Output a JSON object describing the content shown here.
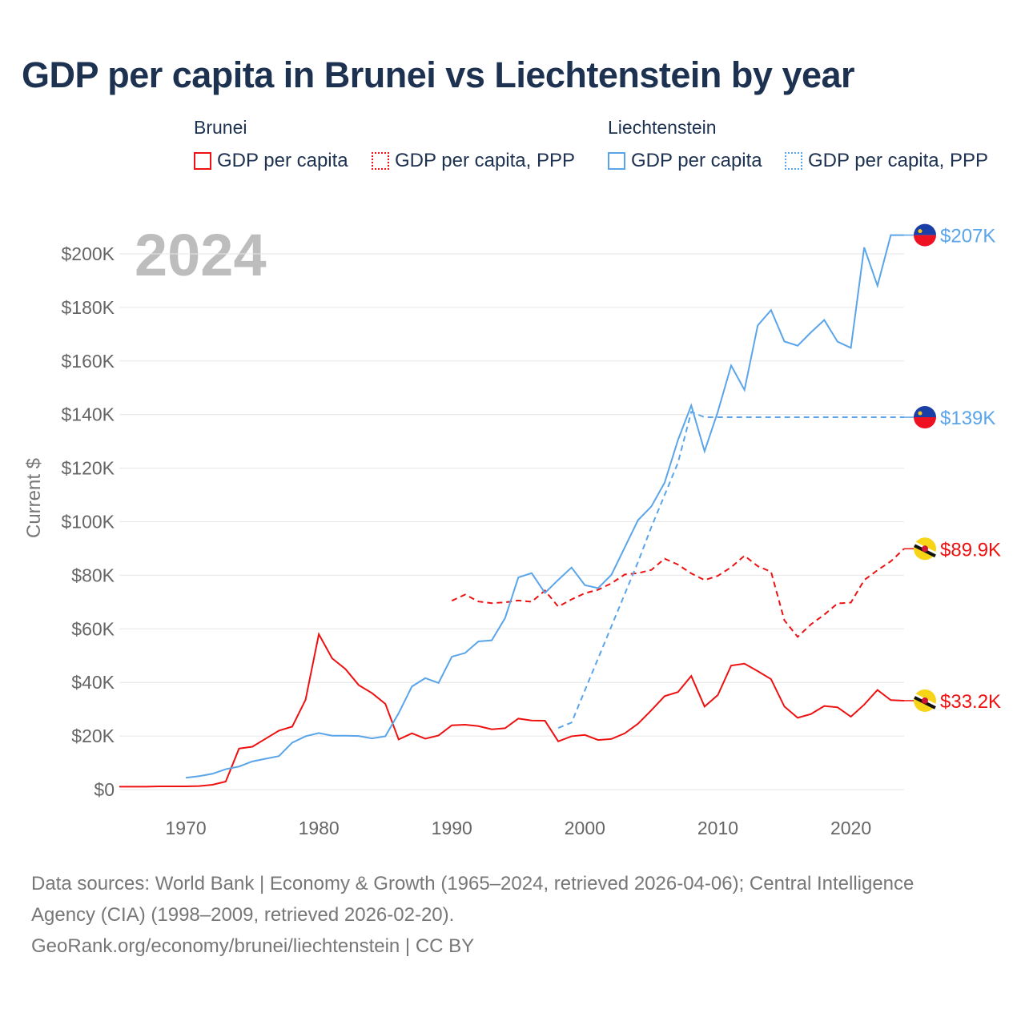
{
  "title": "GDP per capita in Brunei vs Liechtenstein by year",
  "legend": {
    "groups": [
      {
        "name": "Brunei",
        "items": [
          "GDP per capita",
          "GDP per capita, PPP"
        ]
      },
      {
        "name": "Liechtenstein",
        "items": [
          "GDP per capita",
          "GDP per capita, PPP"
        ]
      }
    ]
  },
  "year_overlay": "2024",
  "footer": {
    "line1": "Data sources: World Bank | Economy & Growth (1965–2024, retrieved 2026-04-06); Central Intelligence",
    "line2": "Agency (CIA) (1998–2009, retrieved 2026-02-20).",
    "line3": "GeoRank.org/economy/brunei/liechtenstein | CC BY"
  },
  "chart_data": {
    "type": "line",
    "title": "GDP per capita in Brunei vs Liechtenstein by year",
    "xlabel": "",
    "ylabel": "Current $",
    "xlim": [
      1965,
      2024
    ],
    "ylim": [
      0,
      200000
    ],
    "xticks": [
      1970,
      1980,
      1990,
      2000,
      2010,
      2020
    ],
    "yticks": [
      0,
      20000,
      40000,
      60000,
      80000,
      100000,
      120000,
      140000,
      160000,
      180000,
      200000
    ],
    "ytick_labels": [
      "$0",
      "$20K",
      "$40K",
      "$60K",
      "$80K",
      "$100K",
      "$120K",
      "$140K",
      "$160K",
      "$180K",
      "$200K"
    ],
    "colors": {
      "brunei": "#ee1111",
      "liechtenstein": "#5aa5ea"
    },
    "series": [
      {
        "name": "Brunei GDP per capita",
        "country": "brunei",
        "dashed": false,
        "end_label": "$33.2K",
        "x_start": 1965,
        "values": [
          1.1,
          1.1,
          1.1,
          1.2,
          1.2,
          1.2,
          1.3,
          1.8,
          3,
          15.3,
          16,
          19,
          22,
          23.5,
          33.5,
          58,
          49,
          45,
          39,
          36,
          32,
          18.7,
          21,
          19,
          20.2,
          24,
          24.2,
          23.7,
          22.5,
          22.9,
          26.5,
          25.8,
          25.7,
          18,
          19.9,
          20.4,
          18.5,
          18.9,
          21,
          24.6,
          29.6,
          34.9,
          36.4,
          42.4,
          31,
          35.3,
          46.3,
          47,
          44.2,
          41.2,
          31,
          26.8,
          28.2,
          31.2,
          30.7,
          27.2,
          31.7,
          37.2,
          33.4,
          33.2
        ]
      },
      {
        "name": "Brunei GDP per capita, PPP",
        "country": "brunei",
        "dashed": true,
        "end_label": "$89.9K",
        "x_start": 1990,
        "values": [
          70.5,
          72.8,
          70.2,
          69.6,
          69.9,
          70.6,
          70.1,
          74.3,
          68.3,
          71,
          73.3,
          74.6,
          77,
          80.3,
          80.8,
          82,
          86.2,
          84,
          80.7,
          78.2,
          79.8,
          83,
          87.3,
          83.4,
          81.3,
          63.2,
          57,
          61.7,
          65.3,
          69.5,
          69.8,
          78.2,
          81.9,
          85.2,
          89.9
        ]
      },
      {
        "name": "Liechtenstein GDP per capita",
        "country": "liechtenstein",
        "dashed": false,
        "end_label": "$207K",
        "x_start": 1970,
        "values": [
          4.4,
          5,
          5.9,
          7.6,
          8.6,
          10.5,
          11.5,
          12.5,
          17.5,
          19.9,
          21.1,
          20.1,
          20.1,
          20,
          19.1,
          19.9,
          28.5,
          38.5,
          41.6,
          39.8,
          49.6,
          51,
          55.3,
          55.7,
          64,
          79.2,
          80.8,
          73.4,
          78.3,
          82.9,
          76.3,
          75.2,
          80.2,
          90.4,
          100.6,
          105.7,
          114.6,
          130.5,
          143.4,
          126.3,
          141.1,
          158.3,
          149.2,
          173.3,
          179,
          167.3,
          165.7,
          170.7,
          175.3,
          167.2,
          164.9,
          202.4,
          188.1,
          207,
          207
        ]
      },
      {
        "name": "Liechtenstein GDP per capita, PPP",
        "country": "liechtenstein",
        "dashed": true,
        "end_label": "$139K",
        "x_start": 1998,
        "values": [
          23,
          25,
          37,
          49,
          61,
          73,
          85,
          98,
          110,
          122,
          141,
          139
        ]
      }
    ],
    "units": "thousands of current US$"
  }
}
